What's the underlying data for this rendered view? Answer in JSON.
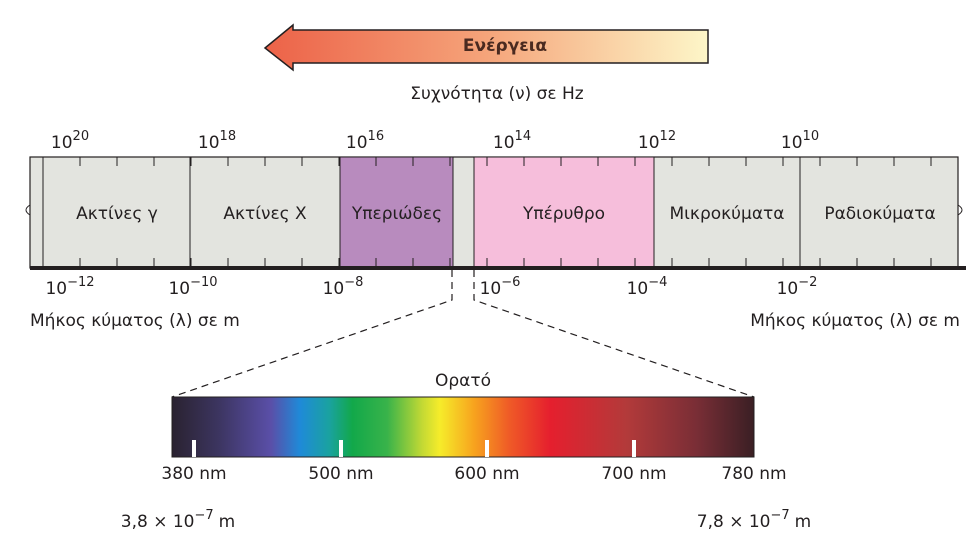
{
  "energy_label": "Ενέργεια",
  "frequency_title": "Συχνότητα (ν) σε Hz",
  "frequency_labels": [
    {
      "base": "10",
      "exp": "20"
    },
    {
      "base": "10",
      "exp": "18"
    },
    {
      "base": "10",
      "exp": "16"
    },
    {
      "base": "10",
      "exp": "14"
    },
    {
      "base": "10",
      "exp": "12"
    },
    {
      "base": "10",
      "exp": "10"
    }
  ],
  "regions": [
    "Ακτίνες γ",
    "Ακτίνες X",
    "Υπεριώδες",
    "Υπέρυθρο",
    "Μικροκύματα",
    "Ραδιοκύματα"
  ],
  "wavelength_labels": [
    {
      "base": "10",
      "exp": "−12"
    },
    {
      "base": "10",
      "exp": "−10"
    },
    {
      "base": "10",
      "exp": "−8"
    },
    {
      "base": "10",
      "exp": "−6"
    },
    {
      "base": "10",
      "exp": "−4"
    },
    {
      "base": "10",
      "exp": "−2"
    }
  ],
  "wavelength_title_left": "Μήκος κύματος (λ) σε m",
  "wavelength_title_right": "Μήκος κύματος (λ) σε m",
  "visible_title": "Ορατό",
  "visible_labels": [
    "380 nm",
    "500 nm",
    "600 nm",
    "700 nm",
    "780 nm"
  ],
  "visible_limits": [
    {
      "mantissa": "3,8 × 10",
      "exp": "−7",
      "unit": "m"
    },
    {
      "mantissa": "7,8 × 10",
      "exp": "−7",
      "unit": "m"
    }
  ]
}
